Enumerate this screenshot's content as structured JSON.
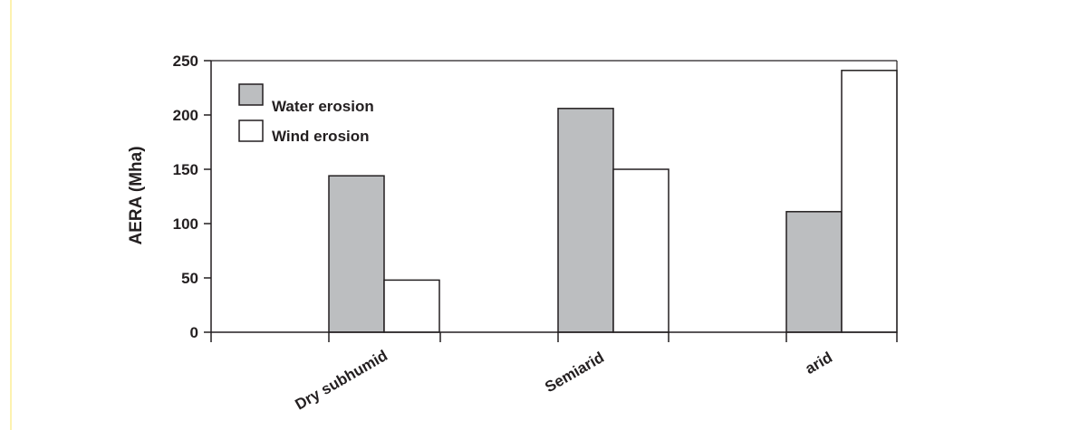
{
  "chart_data": {
    "type": "bar",
    "categories": [
      "Dry subhumid",
      "Semiarid",
      "arid"
    ],
    "series": [
      {
        "name": "Water erosion",
        "values": [
          144,
          206,
          111
        ],
        "color": "#bcbec0"
      },
      {
        "name": "Wind erosion",
        "values": [
          48,
          150,
          241
        ],
        "color": "#ffffff"
      }
    ],
    "ylabel": "AERA (Mha)",
    "xlabel": "",
    "ylim": [
      0,
      250
    ],
    "yticks": [
      0,
      50,
      100,
      150,
      200,
      250
    ],
    "grid": false,
    "legend_placement": "top-left",
    "axis_color": "#231f20",
    "bar_edge_color": "#231f20"
  }
}
